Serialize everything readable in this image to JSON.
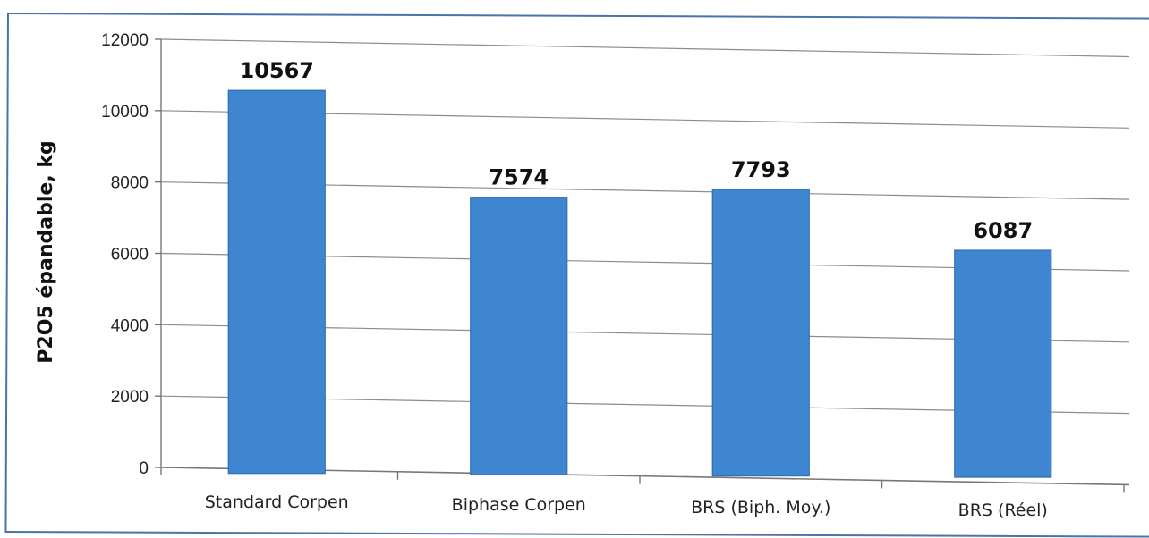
{
  "chart_data": {
    "type": "bar",
    "categories": [
      "Standard Corpen",
      "Biphase Corpen",
      "BRS (Biph. Moy.)",
      "BRS (Réel)"
    ],
    "values": [
      10567,
      7574,
      7793,
      6087
    ],
    "data_labels": [
      "10567",
      "7574",
      "7793",
      "6087"
    ],
    "title": "",
    "xlabel": "",
    "ylabel": "P2O5 épandable, kg",
    "ylim": [
      0,
      12000
    ],
    "yticks": [
      "0",
      "2000",
      "4000",
      "6000",
      "8000",
      "10000",
      "12000"
    ],
    "grid": true,
    "legend": "none",
    "bar_color": "#3f86d1",
    "bar_edge_color": "#2f6fb5"
  }
}
